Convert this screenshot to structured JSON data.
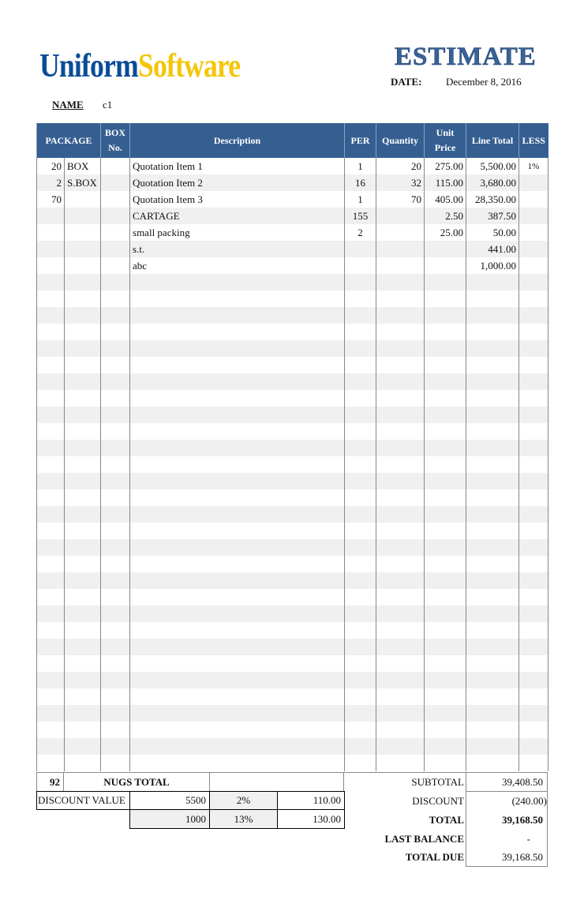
{
  "logo": {
    "part1": "Uniform",
    "part2": "Software"
  },
  "title": "ESTIMATE",
  "date_label": "DATE:",
  "date_value": "December 8, 2016",
  "name_label": "NAME",
  "name_value": "c1",
  "columns": [
    "PACKAGE",
    "BOX No.",
    "Description",
    "PER",
    "Quantity",
    "Unit Price",
    "Line Total",
    "LESS"
  ],
  "rows": [
    [
      "20",
      "BOX",
      "",
      "Quotation Item 1",
      "1",
      "20",
      "275.00",
      "5,500.00",
      "1%"
    ],
    [
      "2",
      "S.BOX",
      "",
      "Quotation Item 2",
      "16",
      "32",
      "115.00",
      "3,680.00",
      ""
    ],
    [
      "70",
      "",
      "",
      "Quotation Item 3",
      "1",
      "70",
      "405.00",
      "28,350.00",
      ""
    ],
    [
      "",
      "",
      "",
      "CARTAGE",
      "155",
      "",
      "2.50",
      "387.50",
      ""
    ],
    [
      "",
      "",
      "",
      "small packing",
      "2",
      "",
      "25.00",
      "50.00",
      ""
    ],
    [
      "",
      "",
      "",
      "s.t.",
      "",
      "",
      "",
      "441.00",
      ""
    ],
    [
      "",
      "",
      "",
      "abc",
      "",
      "",
      "",
      "1,000.00",
      ""
    ]
  ],
  "footer": {
    "nugs_count": "92",
    "nugs_label": "NUGS TOTAL",
    "discount_label": "DISCOUNT VALUE",
    "discounts": [
      {
        "base": "5500",
        "rate": "2%",
        "amount": "110.00"
      },
      {
        "base": "1000",
        "rate": "13%",
        "amount": "130.00"
      }
    ],
    "subtotal_label": "SUBTOTAL",
    "subtotal": "39,408.50",
    "discount_total_label": "DISCOUNT",
    "discount_total": "(240.00)",
    "total_label": "TOTAL",
    "total": "39,168.50",
    "last_balance_label": "LAST BALANCE",
    "last_balance": "-",
    "total_due_label": "TOTAL DUE",
    "total_due": "39,168.50"
  }
}
